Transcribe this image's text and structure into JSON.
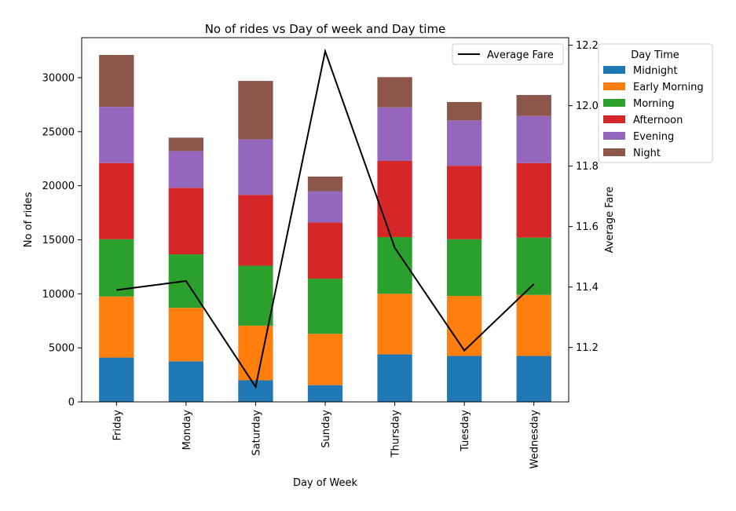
{
  "chart_data": {
    "type": "bar",
    "stacked": true,
    "title": "No of rides vs Day of week and Day time",
    "xlabel": "Day of Week",
    "ylabel": "No of rides",
    "y2label": "Average Fare",
    "categories": [
      "Friday",
      "Monday",
      "Saturday",
      "Sunday",
      "Thursday",
      "Tuesday",
      "Wednesday"
    ],
    "ylim": [
      0,
      33700
    ],
    "yticks": [
      0,
      5000,
      10000,
      15000,
      20000,
      25000,
      30000
    ],
    "y2lim": [
      11.02,
      12.225
    ],
    "y2ticks": [
      11.2,
      11.4,
      11.6,
      11.8,
      12.0,
      12.2
    ],
    "series": [
      {
        "name": "Midnight",
        "color": "#1f77b4",
        "values": [
          4100,
          3750,
          2000,
          1550,
          4400,
          4250,
          4250
        ]
      },
      {
        "name": "Early Morning",
        "color": "#ff7f0e",
        "values": [
          5650,
          4950,
          5050,
          4750,
          5600,
          5550,
          5650
        ]
      },
      {
        "name": "Morning",
        "color": "#2ca02c",
        "values": [
          5300,
          4950,
          5550,
          5100,
          5250,
          5250,
          5300
        ]
      },
      {
        "name": "Afternoon",
        "color": "#d62728",
        "values": [
          7050,
          6150,
          6550,
          5200,
          7050,
          6800,
          6900
        ]
      },
      {
        "name": "Evening",
        "color": "#9467bd",
        "values": [
          5200,
          3400,
          5150,
          2900,
          4950,
          4200,
          4350
        ]
      },
      {
        "name": "Night",
        "color": "#8c564b",
        "values": [
          4800,
          1250,
          5400,
          1350,
          2800,
          1700,
          1950
        ]
      }
    ],
    "line": {
      "name": "Average Fare",
      "color": "#000000",
      "values": [
        11.39,
        11.42,
        11.07,
        12.18,
        11.53,
        11.19,
        11.41
      ]
    },
    "legends": {
      "line_legend": {
        "entries": [
          "Average Fare"
        ],
        "placement": "top-right inside"
      },
      "bar_legend": {
        "title": "Day Time",
        "placement": "outside right"
      }
    },
    "grid": false
  }
}
